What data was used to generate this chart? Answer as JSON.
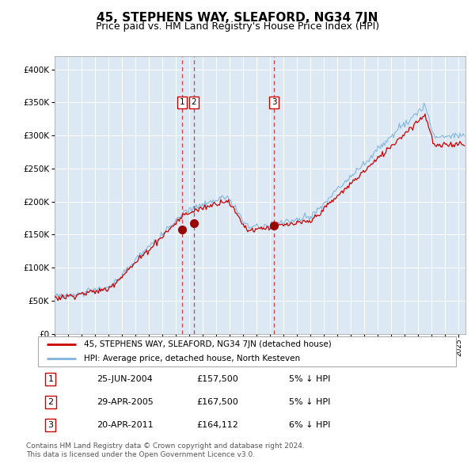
{
  "title": "45, STEPHENS WAY, SLEAFORD, NG34 7JN",
  "subtitle": "Price paid vs. HM Land Registry's House Price Index (HPI)",
  "legend_line1": "45, STEPHENS WAY, SLEAFORD, NG34 7JN (detached house)",
  "legend_line2": "HPI: Average price, detached house, North Kesteven",
  "footer_line1": "Contains HM Land Registry data © Crown copyright and database right 2024.",
  "footer_line2": "This data is licensed under the Open Government Licence v3.0.",
  "transactions": [
    {
      "num": 1,
      "date": "25-JUN-2004",
      "price": 157500,
      "pct": "5%",
      "dir": "↓",
      "x_year": 2004.48
    },
    {
      "num": 2,
      "date": "29-APR-2005",
      "price": 167500,
      "pct": "5%",
      "dir": "↓",
      "x_year": 2005.33
    },
    {
      "num": 3,
      "date": "20-APR-2011",
      "price": 164112,
      "pct": "6%",
      "dir": "↓",
      "x_year": 2011.3
    }
  ],
  "ylim": [
    0,
    420000
  ],
  "xlim_start": 1995.0,
  "xlim_end": 2025.5,
  "background_color": "#dce9f5",
  "grid_color": "#ffffff",
  "red_line_color": "#cc0000",
  "blue_line_color": "#7fb3d9",
  "marker_color": "#990000",
  "vline_color": "#cc2222",
  "box_edge_color": "#cc0000",
  "title_fontsize": 11,
  "subtitle_fontsize": 9
}
